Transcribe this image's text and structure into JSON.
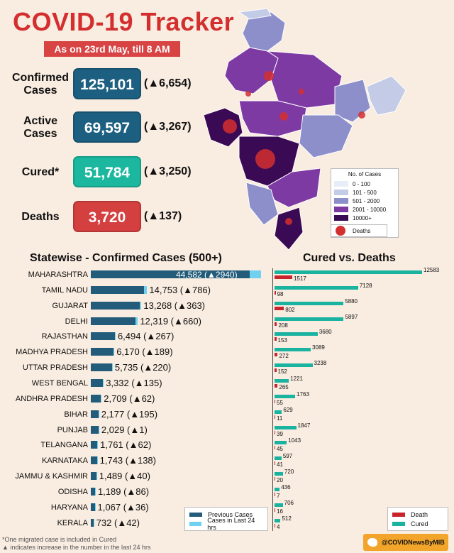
{
  "header": {
    "title": "COVID-19 Tracker",
    "subtitle": "As on 23rd May, till 8 AM"
  },
  "stats": [
    {
      "label1": "Confirmed",
      "label2": "Cases",
      "value": "125,101",
      "delta": "(▲6,654)",
      "color": "#1d5f80"
    },
    {
      "label1": "Active",
      "label2": "Cases",
      "value": "69,597",
      "delta": "(▲3,267)",
      "color": "#1d5f80"
    },
    {
      "label1": "Cured*",
      "label2": "",
      "value": "51,784",
      "delta": "(▲3,250)",
      "color": "#1bb89f"
    },
    {
      "label1": "Deaths",
      "label2": "",
      "value": "3,720",
      "delta": "(▲137)",
      "color": "#d43f3f"
    }
  ],
  "map_legend": {
    "title": "No. of Cases",
    "items": [
      {
        "label": "0 - 100",
        "color": "#e8eef8"
      },
      {
        "label": "101 - 500",
        "color": "#c3cbe6"
      },
      {
        "label": "501 - 2000",
        "color": "#8d8fcb"
      },
      {
        "label": "2001 - 10000",
        "color": "#7d3aa3"
      },
      {
        "label": "10000+",
        "color": "#3b0a54"
      }
    ],
    "deaths_label": "Deaths"
  },
  "chart_data": [
    {
      "type": "bar",
      "title": "Statewise - Confirmed Cases (500+)",
      "categories": [
        "MAHARASHTRA",
        "TAMIL NADU",
        "GUJARAT",
        "DELHI",
        "RAJASTHAN",
        "MADHYA PRADESH",
        "UTTAR PRADESH",
        "WEST BENGAL",
        "ANDHRA PRADESH",
        "BIHAR",
        "PUNJAB",
        "TELANGANA",
        "KARNATAKA",
        "JAMMU & KASHMIR",
        "ODISHA",
        "HARYANA",
        "KERALA"
      ],
      "series": [
        {
          "name": "Previous Cases",
          "values": [
            41642,
            13967,
            12905,
            11659,
            6227,
            5981,
            5515,
            3197,
            2647,
            1982,
            2028,
            1699,
            1605,
            1449,
            1103,
            1031,
            690
          ]
        },
        {
          "name": "Cases in Last 24 hrs",
          "values": [
            2940,
            786,
            363,
            660,
            267,
            189,
            220,
            135,
            62,
            195,
            1,
            62,
            138,
            40,
            86,
            36,
            42
          ]
        }
      ],
      "labels": [
        "44,582 (▲2940)",
        "14,753 (▲786)",
        "13,268 (▲363)",
        "12,319 (▲660)",
        "6,494 (▲267)",
        "6,170 (▲189)",
        "5,735 (▲220)",
        "3,332 (▲135)",
        "2,709 (▲62)",
        "2,177 (▲195)",
        "2,029 (▲1)",
        "1,761 (▲62)",
        "1,743 (▲138)",
        "1,489 (▲40)",
        "1,189 (▲86)",
        "1,067 (▲36)",
        "732 (▲42)"
      ],
      "legend": [
        "Previous Cases",
        "Cases in Last 24 hrs"
      ]
    },
    {
      "type": "bar",
      "title": "Cured vs. Deaths",
      "categories": [
        "MAHARASHTRA",
        "TAMIL NADU",
        "GUJARAT",
        "DELHI",
        "RAJASTHAN",
        "MADHYA PRADESH",
        "UTTAR PRADESH",
        "WEST BENGAL",
        "ANDHRA PRADESH",
        "BIHAR",
        "PUNJAB",
        "TELANGANA",
        "KARNATAKA",
        "JAMMU & KASHMIR",
        "ODISHA",
        "HARYANA",
        "KERALA"
      ],
      "series": [
        {
          "name": "Death",
          "values": [
            1517,
            98,
            802,
            208,
            153,
            272,
            152,
            265,
            55,
            11,
            39,
            45,
            41,
            20,
            7,
            16,
            4
          ]
        },
        {
          "name": "Cured",
          "values": [
            12583,
            7128,
            5880,
            5897,
            3680,
            3089,
            3238,
            1221,
            1763,
            629,
            1847,
            1043,
            597,
            720,
            436,
            706,
            512
          ]
        }
      ],
      "legend": [
        "Death",
        "Cured"
      ]
    }
  ],
  "footnotes": {
    "line1": "*One migrated case is included in Cured",
    "line2": "▲ indicates increase in the number in the last 24 hrs"
  },
  "twitter_handle": "@COVIDNewsByMIB"
}
